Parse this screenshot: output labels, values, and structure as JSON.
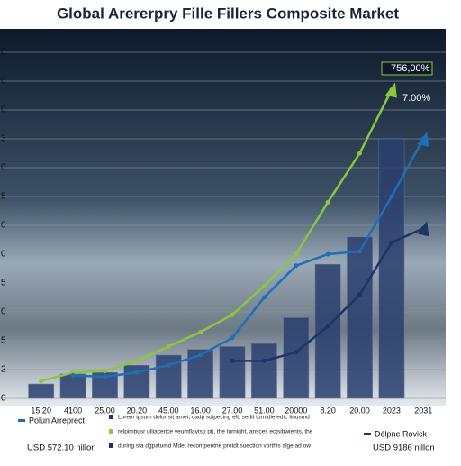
{
  "chart_data": {
    "type": "bar",
    "title": "Global  Arererpry Fille Fillers Composite Market",
    "categories": [
      "15.20",
      "4100",
      "25.00",
      "20.20",
      "45.00",
      "16.00",
      "27.00",
      "51.00",
      "20000",
      "8.20",
      "20.00",
      "2023",
      "2031"
    ],
    "values": [
      0.5,
      0.85,
      0.9,
      1.15,
      1.5,
      1.7,
      1.8,
      1.9,
      2.8,
      4.65,
      5.6,
      9.0,
      null
    ],
    "color": "#2a3f6e",
    "series": [
      {
        "color": "#8cc63f",
        "values": [
          0.6,
          0.9,
          0.95,
          1.3,
          1.8,
          2.3,
          2.9,
          3.9,
          5.0,
          6.8,
          8.5,
          10.7,
          null
        ]
      },
      {
        "name": "Polun Arreprect",
        "color": "#1f6fb5",
        "values": [
          null,
          0.8,
          0.75,
          0.9,
          1.15,
          1.5,
          2.1,
          3.5,
          4.6,
          5.0,
          5.1,
          7.0,
          9.0
        ]
      },
      {
        "name": "Délpne Rovick",
        "color": "#1c3566",
        "values": [
          null,
          null,
          null,
          null,
          null,
          null,
          1.3,
          1.3,
          1.6,
          2.5,
          3.6,
          5.4,
          5.9
        ]
      }
    ],
    "ylim": [
      0,
      12
    ],
    "yticks": [
      {
        "value": 0,
        "label": "0"
      },
      {
        "value": 1,
        "label": "2"
      },
      {
        "value": 2,
        "label": "5"
      },
      {
        "value": 3,
        "label": "0"
      },
      {
        "value": 4,
        "label": "5"
      },
      {
        "value": 5,
        "label": "0"
      },
      {
        "value": 6,
        "label": "0"
      },
      {
        "value": 7,
        "label": "5"
      },
      {
        "value": 8,
        "label": "0"
      },
      {
        "value": 9,
        "label": "3"
      },
      {
        "value": 10,
        "label": "0"
      },
      {
        "value": 11,
        "label": "0"
      },
      {
        "value": 12,
        "label": "0"
      }
    ],
    "grid": true,
    "annotations": [
      "756,00%",
      "7.00%"
    ],
    "legend_values": [
      "USD 572.10 nillon",
      "USD 9186 nillon"
    ],
    "notes": [
      "Lorem ipsum dolor sit amet, cadp sdipecing elt, sedit turnidie edit, linusmd",
      "relpimbusr ulliacerice yeumflaytso pit, the turnight, ansces ectsibwients, the",
      "during sta dgpatumd Mdet recompentne protdt suection vorthis alge ad ow"
    ]
  }
}
